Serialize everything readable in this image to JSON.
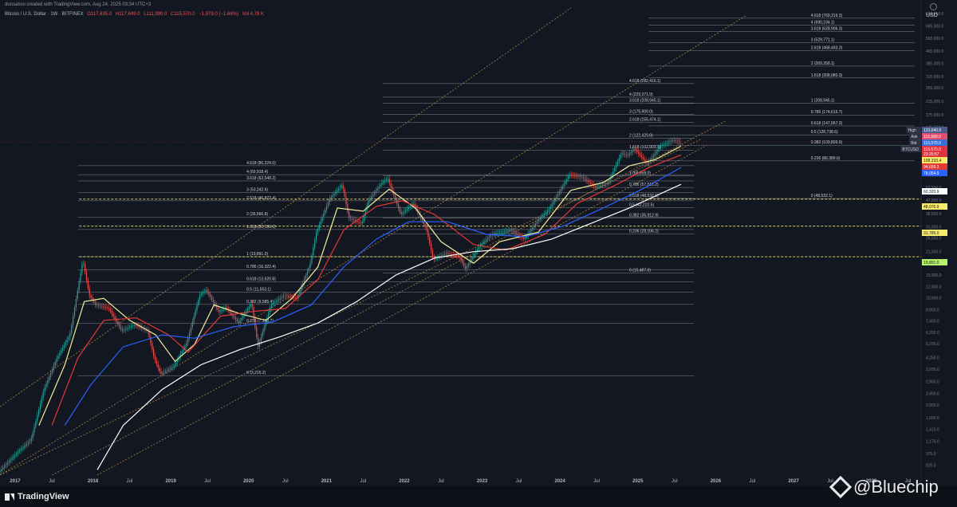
{
  "header": {
    "author_line": "donsatosi created with TradingView.com, Aug 24, 2025 03:34 UTC+3",
    "symbol_line": "Bitcoin / U.S. Dollar · 1W · BITFINEX",
    "ohlc": [
      "O117,635.0",
      "H117,649.0",
      "L111,990.0",
      "C115,570.0",
      "−1,979.0 (−1.68%)",
      "Vol 4.78 K"
    ]
  },
  "brand": {
    "name": "TradingView",
    "watermark": "@Bluechip"
  },
  "currency": "USD",
  "colors": {
    "bg": "#131722",
    "fib": "#b2b5be",
    "channel": "#c8963e",
    "ma_yellow": "#f2ef9a",
    "ma_red": "#e53935",
    "ma_blue": "#2962ff",
    "ma_white": "#ffffff",
    "candle_up": "#26a69a",
    "candle_down": "#ef5350"
  },
  "chart_data": {
    "type": "candlestick",
    "title": "Bitcoin / U.S. Dollar · 1W · BITFINEX",
    "y_scale": "log",
    "ylim": [
      700,
      900000
    ],
    "x_start": "2016-11",
    "x_end": "2028-09",
    "x_labels": [
      "2017",
      "Jul",
      "2018",
      "Jul",
      "2019",
      "Jul",
      "2020",
      "Jul",
      "2021",
      "Jul",
      "2022",
      "Jul",
      "2023",
      "Jul",
      "2024",
      "Jul",
      "2025",
      "Jul",
      "2026",
      "Jul",
      "2027",
      "Jul",
      "2028",
      "Jul"
    ],
    "y_ticks": [
      "825,000.0",
      "685,000.0",
      "565,000.0",
      "465,000.0",
      "385,000.0",
      "315,000.0",
      "265,000.0",
      "215,000.0",
      "175,000.0",
      "145,000.0",
      "120,000.0",
      "98,500.0",
      "81,500.0",
      "69,500.0",
      "57,500.0",
      "47,500.0",
      "38,500.0",
      "31,500.0",
      "26,500.0",
      "21,500.0",
      "18,000.0",
      "15,000.0",
      "12,600.0",
      "10,600.0",
      "8,850.0",
      "7,450.0",
      "6,250.0",
      "5,250.0",
      "4,250.0",
      "3,550.0",
      "2,950.0",
      "2,450.0",
      "2,050.0",
      "1,690.0",
      "1,415.0",
      "1,175.0",
      "975.0",
      "815.0"
    ],
    "price_badges": [
      {
        "label": "High",
        "value": "123,640.0"
      },
      {
        "label": "Ask",
        "value": "115,580.0"
      },
      {
        "label": "Bid",
        "value": "115,570.0"
      },
      {
        "label": "BTCUSD",
        "value": "115,570.0"
      },
      {
        "label": "",
        "value": "23:25:57"
      },
      {
        "label": "",
        "value": "108,233.4"
      },
      {
        "label": "",
        "value": "94,659.3"
      },
      {
        "label": "",
        "value": "78,054.9"
      },
      {
        "label": "",
        "value": "60,320.9"
      },
      {
        "label": "",
        "value": "48,076.9"
      },
      {
        "label": "",
        "value": "31,785.0"
      },
      {
        "label": "",
        "value": "19,891.0"
      }
    ],
    "fib_sets": [
      {
        "from": "2017-11",
        "to": "2025-10",
        "label_at": "2020-01",
        "levels": [
          {
            "label": "4.618 (80,224.0)",
            "price": 80224
          },
          {
            "label": "4 (69,918.4)",
            "price": 69918.4
          },
          {
            "label": "3.618 (63,548.2)",
            "price": 63548.2
          },
          {
            "label": "3 (53,242.6)",
            "price": 53242.6
          },
          {
            "label": "2.618 (46,872.4)",
            "price": 46872.4
          },
          {
            "label": "2 (36,566.8)",
            "price": 36566.8
          },
          {
            "label": "1.618 (30,196.6)",
            "price": 30196.6
          },
          {
            "label": "1 (19,891.0)",
            "price": 19891
          },
          {
            "label": "0.786 (16,322.4)",
            "price": 16322.4
          },
          {
            "label": "0.618 (13,520.8)",
            "price": 13520.8
          },
          {
            "label": "0.5 (11,553.1)",
            "price": 11553.1
          },
          {
            "label": "0.382 (9,585.4)",
            "price": 9585.4
          },
          {
            "label": "0.236 (7,150.7)",
            "price": 7150.7
          },
          {
            "label": "0 (3,215.2)",
            "price": 3215.2
          }
        ]
      },
      {
        "from": "2021-10",
        "to": "2025-10",
        "label_at": "2024-12",
        "levels": [
          {
            "label": "4.618 (282,416.1)",
            "price": 282416.1
          },
          {
            "label": "4 (229,371.0)",
            "price": 229371
          },
          {
            "label": "3.618 (208,945.1)",
            "price": 208945.1
          },
          {
            "label": "3 (175,900.0)",
            "price": 175900
          },
          {
            "label": "2.618 (155,474.1)",
            "price": 155474.1
          },
          {
            "label": "2 (122,429.0)",
            "price": 122429
          },
          {
            "label": "1.618 (102,003.1)",
            "price": 102003.1
          },
          {
            "label": "1 (68,958.0)",
            "price": 68958
          },
          {
            "label": "0.786 (57,515.2)",
            "price": 57515.2
          },
          {
            "label": "0.618 (48,532.1)",
            "price": 48532.1
          },
          {
            "label": "0.5 (42,222.5)",
            "price": 42222.5
          },
          {
            "label": "0.382 (35,912.9)",
            "price": 35912.9
          },
          {
            "label": "0.236 (28,106.2)",
            "price": 28106.2
          },
          {
            "label": "0 (15,487.0)",
            "price": 15487
          }
        ]
      },
      {
        "from": "2025-03",
        "to": "2028-08",
        "label_at": "2027-04",
        "levels": [
          {
            "label": "4.618 (769,319.3)",
            "price": 769319.3
          },
          {
            "label": "4 (690,184.1)",
            "price": 690184.1
          },
          {
            "label": "3.618 (628,906.3)",
            "price": 628906.3
          },
          {
            "label": "3 (529,771.1)",
            "price": 529771.1
          },
          {
            "label": "2.618 (468,493.3)",
            "price": 468493.3
          },
          {
            "label": "2 (369,358.1)",
            "price": 369358.1
          },
          {
            "label": "1.618 (308,080.3)",
            "price": 308080.3
          },
          {
            "label": "1 (208,945.1)",
            "price": 208945.1
          },
          {
            "label": "0.786 (174,616.7)",
            "price": 174616.7
          },
          {
            "label": "0.618 (147,667.3)",
            "price": 147667.3
          },
          {
            "label": "0.5 (128,738.6)",
            "price": 128738.6
          },
          {
            "label": "0.382 (109,809.9)",
            "price": 109809.9
          },
          {
            "label": "0.236 (86,389.6)",
            "price": 86389.6
          },
          {
            "label": "0 (48,532.1)",
            "price": 48532.1
          }
        ]
      }
    ],
    "dashed_levels": [
      48076.9,
      31785.0,
      19891.0
    ],
    "channel_lines": [
      {
        "t1": "2016-11",
        "p1": 2000,
        "t2": "2024-03",
        "p2": 900000
      },
      {
        "t1": "2016-11",
        "p1": 700,
        "t2": "2026-06",
        "p2": 800000
      },
      {
        "t1": "2016-11",
        "p1": 700,
        "t2": "2025-11",
        "p2": 120000
      },
      {
        "t1": "2017-07",
        "p1": 700,
        "t2": "2026-03",
        "p2": 160000
      },
      {
        "t1": "2018-02",
        "p1": 700,
        "t2": "2025-12",
        "p2": 110000
      }
    ],
    "series": [
      {
        "name": "BTCUSD",
        "kind": "price",
        "points": [
          [
            "2016-11",
            730
          ],
          [
            "2017-02",
            1000
          ],
          [
            "2017-04",
            1200
          ],
          [
            "2017-06",
            2600
          ],
          [
            "2017-08",
            4200
          ],
          [
            "2017-10",
            6000
          ],
          [
            "2017-12",
            19000
          ],
          [
            "2018-01",
            11000
          ],
          [
            "2018-02",
            9500
          ],
          [
            "2018-04",
            9000
          ],
          [
            "2018-06",
            6400
          ],
          [
            "2018-08",
            7000
          ],
          [
            "2018-10",
            6400
          ],
          [
            "2018-11",
            4200
          ],
          [
            "2018-12",
            3300
          ],
          [
            "2019-02",
            3700
          ],
          [
            "2019-04",
            5300
          ],
          [
            "2019-06",
            11000
          ],
          [
            "2019-07",
            12000
          ],
          [
            "2019-09",
            8500
          ],
          [
            "2019-10",
            9200
          ],
          [
            "2019-12",
            7200
          ],
          [
            "2020-02",
            9800
          ],
          [
            "2020-03",
            5000
          ],
          [
            "2020-05",
            9500
          ],
          [
            "2020-07",
            11000
          ],
          [
            "2020-09",
            10500
          ],
          [
            "2020-11",
            17500
          ],
          [
            "2020-12",
            29000
          ],
          [
            "2021-02",
            48000
          ],
          [
            "2021-04",
            60000
          ],
          [
            "2021-05",
            36000
          ],
          [
            "2021-07",
            33000
          ],
          [
            "2021-08",
            47000
          ],
          [
            "2021-10",
            61000
          ],
          [
            "2021-11",
            66000
          ],
          [
            "2022-01",
            38000
          ],
          [
            "2022-03",
            45000
          ],
          [
            "2022-05",
            30000
          ],
          [
            "2022-06",
            19000
          ],
          [
            "2022-08",
            21000
          ],
          [
            "2022-10",
            20000
          ],
          [
            "2022-11",
            16500
          ],
          [
            "2023-01",
            23000
          ],
          [
            "2023-03",
            28000
          ],
          [
            "2023-06",
            30000
          ],
          [
            "2023-08",
            26000
          ],
          [
            "2023-10",
            34000
          ],
          [
            "2023-12",
            42000
          ],
          [
            "2024-03",
            70000
          ],
          [
            "2024-05",
            67000
          ],
          [
            "2024-07",
            58000
          ],
          [
            "2024-09",
            62000
          ],
          [
            "2024-11",
            97000
          ],
          [
            "2024-12",
            94000
          ],
          [
            "2025-01",
            104000
          ],
          [
            "2025-03",
            83000
          ],
          [
            "2025-04",
            94000
          ],
          [
            "2025-05",
            108000
          ],
          [
            "2025-07",
            119000
          ],
          [
            "2025-08",
            115570
          ]
        ]
      },
      {
        "name": "MA yellow",
        "kind": "ma",
        "color": "#f2ef9a",
        "points": [
          [
            "2017-05",
            1500
          ],
          [
            "2017-09",
            3800
          ],
          [
            "2017-12",
            10000
          ],
          [
            "2018-03",
            10500
          ],
          [
            "2018-07",
            7500
          ],
          [
            "2018-11",
            6000
          ],
          [
            "2019-02",
            4000
          ],
          [
            "2019-05",
            5200
          ],
          [
            "2019-08",
            9500
          ],
          [
            "2019-12",
            8300
          ],
          [
            "2020-04",
            7500
          ],
          [
            "2020-08",
            10500
          ],
          [
            "2020-12",
            17000
          ],
          [
            "2021-03",
            42000
          ],
          [
            "2021-07",
            40000
          ],
          [
            "2021-11",
            56000
          ],
          [
            "2022-03",
            42000
          ],
          [
            "2022-07",
            25000
          ],
          [
            "2022-12",
            18000
          ],
          [
            "2023-04",
            25000
          ],
          [
            "2023-10",
            29000
          ],
          [
            "2024-03",
            55000
          ],
          [
            "2024-08",
            62000
          ],
          [
            "2024-12",
            80000
          ],
          [
            "2025-04",
            88000
          ],
          [
            "2025-08",
            108233.4
          ]
        ]
      },
      {
        "name": "MA red",
        "kind": "ma",
        "color": "#e53935",
        "points": [
          [
            "2017-07",
            1500
          ],
          [
            "2017-11",
            4200
          ],
          [
            "2018-03",
            7500
          ],
          [
            "2018-08",
            7800
          ],
          [
            "2019-01",
            6000
          ],
          [
            "2019-04",
            4600
          ],
          [
            "2019-09",
            8000
          ],
          [
            "2020-02",
            8600
          ],
          [
            "2020-07",
            9000
          ],
          [
            "2020-12",
            14000
          ],
          [
            "2021-04",
            30000
          ],
          [
            "2021-09",
            43000
          ],
          [
            "2022-01",
            47000
          ],
          [
            "2022-06",
            38000
          ],
          [
            "2022-12",
            24000
          ],
          [
            "2023-05",
            22000
          ],
          [
            "2023-11",
            28000
          ],
          [
            "2024-04",
            45000
          ],
          [
            "2024-10",
            60000
          ],
          [
            "2025-03",
            78000
          ],
          [
            "2025-08",
            94659.3
          ]
        ]
      },
      {
        "name": "MA blue",
        "kind": "ma",
        "color": "#2962ff",
        "points": [
          [
            "2017-09",
            1500
          ],
          [
            "2018-01",
            2800
          ],
          [
            "2018-06",
            5000
          ],
          [
            "2018-12",
            6000
          ],
          [
            "2019-05",
            5700
          ],
          [
            "2019-11",
            6800
          ],
          [
            "2020-05",
            7300
          ],
          [
            "2020-11",
            9500
          ],
          [
            "2021-04",
            17000
          ],
          [
            "2021-09",
            26000
          ],
          [
            "2022-02",
            34000
          ],
          [
            "2022-08",
            34000
          ],
          [
            "2023-02",
            28000
          ],
          [
            "2023-08",
            27000
          ],
          [
            "2024-02",
            32000
          ],
          [
            "2024-08",
            42000
          ],
          [
            "2025-02",
            56000
          ],
          [
            "2025-08",
            78054.9
          ]
        ]
      },
      {
        "name": "MA white",
        "kind": "ma",
        "color": "#ffffff",
        "points": [
          [
            "2018-02",
            760
          ],
          [
            "2018-06",
            1500
          ],
          [
            "2018-12",
            2600
          ],
          [
            "2019-06",
            3800
          ],
          [
            "2019-12",
            4800
          ],
          [
            "2020-06",
            5800
          ],
          [
            "2020-12",
            7200
          ],
          [
            "2021-06",
            10000
          ],
          [
            "2021-12",
            15000
          ],
          [
            "2022-06",
            19500
          ],
          [
            "2022-12",
            21500
          ],
          [
            "2023-06",
            22500
          ],
          [
            "2023-12",
            26000
          ],
          [
            "2024-06",
            33000
          ],
          [
            "2024-12",
            42000
          ],
          [
            "2025-08",
            60320.9
          ]
        ]
      }
    ]
  }
}
